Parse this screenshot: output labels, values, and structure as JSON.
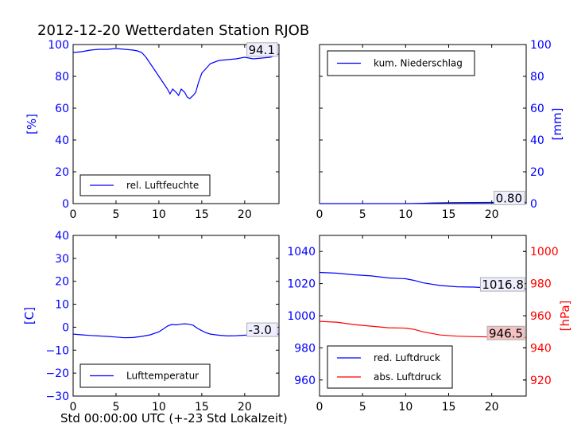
{
  "title": "2012-12-20 Wetterdaten Station RJOB",
  "footer_label": "Std 00:00:00 UTC (+-23 Std Lokalzeit)",
  "colors": {
    "blue": "#0000ff",
    "red": "#ff0000",
    "black": "#000000"
  },
  "chart_data": [
    {
      "id": "humidity",
      "type": "line",
      "xlim": [
        0,
        24
      ],
      "ylim": [
        0,
        100
      ],
      "xticks": [
        "0",
        "5",
        "10",
        "15",
        "20"
      ],
      "yticks": [
        "0",
        "20",
        "40",
        "60",
        "80",
        "100"
      ],
      "ylabel": "[%]",
      "legend": "lower-left",
      "series": [
        {
          "name": "rel. Luftfeuchte",
          "color": "#0000ff",
          "x": [
            0,
            1,
            2,
            3,
            4,
            5,
            6,
            7,
            7.5,
            8,
            8.5,
            9,
            9.5,
            10,
            10.5,
            11,
            11.3,
            11.6,
            12,
            12.3,
            12.6,
            13,
            13.3,
            13.6,
            14,
            14.3,
            14.6,
            15,
            15.5,
            16,
            17,
            18,
            19,
            20,
            21,
            22,
            23,
            23.5,
            24
          ],
          "y": [
            95,
            95.5,
            96.5,
            97,
            97,
            97.5,
            97,
            96.5,
            96,
            95,
            92,
            88,
            84,
            80,
            76,
            72,
            69,
            72,
            70,
            68,
            72,
            70,
            67,
            66,
            68,
            70,
            76,
            82,
            85,
            88,
            90,
            90.5,
            91,
            92,
            91,
            91.5,
            92,
            93,
            94.1
          ]
        }
      ],
      "annotation": "94.1"
    },
    {
      "id": "precipitation",
      "type": "line",
      "xlim": [
        0,
        24
      ],
      "ylim": [
        0,
        100
      ],
      "xticks": [
        "0",
        "5",
        "10",
        "15",
        "20"
      ],
      "yticks": [
        "0",
        "20",
        "40",
        "60",
        "80",
        "100"
      ],
      "ylabel": "[mm]",
      "legend": "top-left",
      "series": [
        {
          "name": "kum. Niederschlag",
          "color": "#0000ff",
          "x": [
            0,
            10,
            12,
            13,
            15,
            18,
            20,
            24
          ],
          "y": [
            0,
            0,
            0.2,
            0.4,
            0.6,
            0.7,
            0.75,
            0.8
          ]
        }
      ],
      "annotation": "0.80"
    },
    {
      "id": "temperature",
      "type": "line",
      "xlim": [
        0,
        24
      ],
      "ylim": [
        -30,
        40
      ],
      "xticks": [
        "0",
        "5",
        "10",
        "15",
        "20"
      ],
      "yticks": [
        "−30",
        "−20",
        "−10",
        "0",
        "10",
        "20",
        "30",
        "40"
      ],
      "ylabel": "[C]",
      "legend": "lower-left",
      "series": [
        {
          "name": "Lufttemperatur",
          "color": "#0000ff",
          "x": [
            0,
            1,
            2,
            3,
            4,
            5,
            6,
            7,
            8,
            9,
            10,
            10.5,
            11,
            11.5,
            12,
            12.5,
            13,
            13.5,
            14,
            14.5,
            15,
            15.5,
            16,
            17,
            18,
            19,
            20,
            21,
            22,
            23,
            24
          ],
          "y": [
            -3,
            -3.3,
            -3.6,
            -3.8,
            -4,
            -4.3,
            -4.6,
            -4.5,
            -4,
            -3.3,
            -2,
            -0.8,
            0.5,
            1.2,
            1,
            1.3,
            1.5,
            1.3,
            0.8,
            -0.5,
            -1.5,
            -2.4,
            -3,
            -3.5,
            -3.8,
            -3.7,
            -3.5,
            -3.3,
            -3.2,
            -3.1,
            -3.0
          ]
        }
      ],
      "annotation": "-3.0"
    },
    {
      "id": "pressure",
      "type": "line",
      "xlim": [
        0,
        24
      ],
      "ylim": [
        950,
        1050
      ],
      "ylim_right": [
        910,
        1010
      ],
      "xticks": [
        "0",
        "5",
        "10",
        "15",
        "20"
      ],
      "yticks": [
        "960",
        "980",
        "1000",
        "1020",
        "1040"
      ],
      "yticks_right": [
        "920",
        "940",
        "960",
        "980",
        "1000"
      ],
      "ylabel_right": "[hPa]",
      "legend": "lower-left",
      "series": [
        {
          "name": "red. Luftdruck",
          "color": "#0000ff",
          "axis": "left",
          "x": [
            0,
            2,
            4,
            6,
            8,
            10,
            11,
            12,
            14,
            16,
            18,
            20,
            22,
            24
          ],
          "y": [
            1027,
            1026.5,
            1025.5,
            1024.8,
            1023.5,
            1023,
            1022,
            1020.5,
            1018.8,
            1018,
            1017.8,
            1017.2,
            1017,
            1016.8
          ]
        },
        {
          "name": "abs. Luftdruck",
          "color": "#ff0000",
          "axis": "right",
          "x": [
            0,
            2,
            4,
            6,
            8,
            10,
            11,
            12,
            14,
            16,
            18,
            20,
            22,
            24
          ],
          "y": [
            956.5,
            956,
            954.5,
            953.5,
            952.5,
            952.3,
            951.5,
            950,
            948,
            947.3,
            947,
            946.8,
            946.6,
            946.5
          ]
        }
      ],
      "annotation": "1016.8",
      "annotation_right": "946.5"
    }
  ]
}
